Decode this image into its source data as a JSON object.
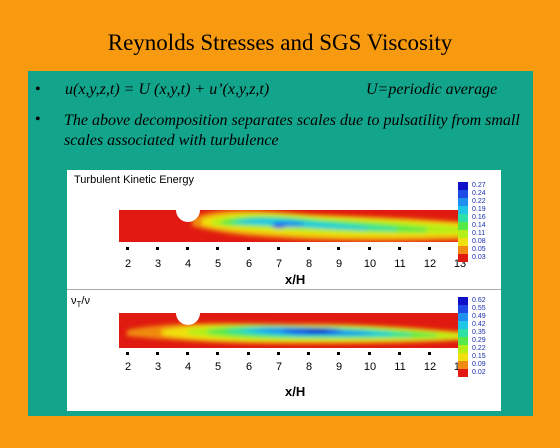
{
  "slide": {
    "title": "Reynolds Stresses and SGS Viscosity",
    "bullets": [
      {
        "marker": "•",
        "equation": "u(x,y,z,t) = U (x,y,t) + u’(x,y,z,t)",
        "note": "U=periodic average"
      },
      {
        "marker": "•",
        "text": "The above decomposition separates scales due to pulsatility from small scales associated with turbulence"
      }
    ],
    "colors": {
      "background": "#f79a0f",
      "content_box": "#13a58b",
      "figure_bg": "#ffffff"
    }
  },
  "figure": {
    "panels": [
      {
        "title": "Turbulent Kinetic Energy",
        "x_label": "x/H",
        "ticks": [
          "2",
          "3",
          "4",
          "5",
          "6",
          "7",
          "8",
          "9",
          "10",
          "11",
          "12",
          "13"
        ],
        "legend": [
          "0.27",
          "0.24",
          "0.22",
          "0.19",
          "0.16",
          "0.14",
          "0.11",
          "0.08",
          "0.05",
          "0.03"
        ]
      },
      {
        "title": "ν",
        "title_sub": "T",
        "title_tail": "/ν",
        "x_label": "x/H",
        "ticks": [
          "2",
          "3",
          "4",
          "5",
          "6",
          "7",
          "8",
          "9",
          "10",
          "11",
          "12",
          "13"
        ],
        "legend": [
          "0.62",
          "0.55",
          "0.49",
          "0.42",
          "0.35",
          "0.29",
          "0.22",
          "0.15",
          "0.09",
          "0.02"
        ]
      }
    ],
    "colormap": [
      "#1010c8",
      "#1e4ae6",
      "#1f8ff0",
      "#1fc6e8",
      "#2ee0a8",
      "#58e848",
      "#b6ee18",
      "#f0e010",
      "#f08a10",
      "#e01a10"
    ]
  }
}
